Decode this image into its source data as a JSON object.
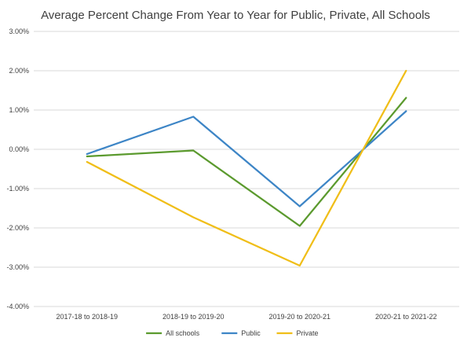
{
  "chart_data": {
    "type": "line",
    "title": "Average Percent Change From Year to Year for Public, Private, All Schools",
    "xlabel": "",
    "ylabel": "",
    "categories": [
      "2017-18 to 2018-19",
      "2018-19 to 2019-20",
      "2019-20 to 2020-21",
      "2020-21 to 2021-22"
    ],
    "ylim": [
      -4.0,
      3.0
    ],
    "yticks": [
      "3.00%",
      "2.00%",
      "1.00%",
      "0.00%",
      "-1.00%",
      "-2.00%",
      "-3.00%",
      "-4.00%"
    ],
    "ytick_values": [
      3,
      2,
      1,
      0,
      -1,
      -2,
      -3,
      -4
    ],
    "grid": true,
    "legend_position": "bottom",
    "series": [
      {
        "name": "All schools",
        "color": "#5b9a2e",
        "values": [
          -0.18,
          -0.03,
          -1.95,
          1.31
        ]
      },
      {
        "name": "Public",
        "color": "#3d85c6",
        "values": [
          -0.12,
          0.83,
          -1.45,
          0.97
        ]
      },
      {
        "name": "Private",
        "color": "#f0be18",
        "values": [
          -0.32,
          -1.73,
          -2.96,
          2.0
        ]
      }
    ]
  }
}
